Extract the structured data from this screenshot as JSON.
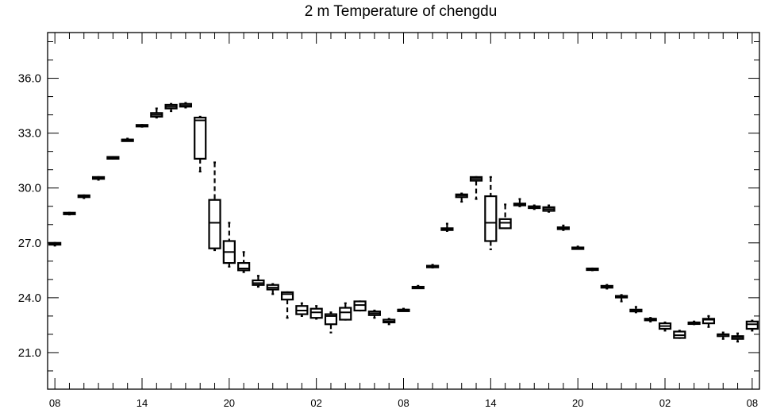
{
  "chart_data": {
    "type": "box",
    "title": "2 m Temperature of chengdu",
    "xlabel": "",
    "ylabel": "",
    "ylim": [
      19.0,
      38.5
    ],
    "xlim": [
      -0.5,
      48.5
    ],
    "y_ticks": [
      21.0,
      24.0,
      27.0,
      30.0,
      33.0,
      36.0
    ],
    "y_tick_labels": [
      "21.0",
      "24.0",
      "27.0",
      "30.0",
      "33.0",
      "36.0"
    ],
    "x_ticks": [
      0,
      6,
      12,
      18,
      24,
      30,
      36,
      42,
      48
    ],
    "x_tick_labels": [
      "08",
      "14",
      "20",
      "02",
      "08",
      "14",
      "20",
      "02",
      "08"
    ],
    "grid": false,
    "series": [
      {
        "values": [
          {
            "x": 0,
            "min": 26.85,
            "q1": 26.9,
            "median": 26.95,
            "q3": 27.0,
            "max": 27.0
          },
          {
            "x": 1,
            "min": 28.55,
            "q1": 28.6,
            "median": 28.6,
            "q3": 28.65,
            "max": 28.65
          },
          {
            "x": 2,
            "min": 29.45,
            "q1": 29.5,
            "median": 29.55,
            "q3": 29.6,
            "max": 29.6
          },
          {
            "x": 3,
            "min": 30.45,
            "q1": 30.5,
            "median": 30.55,
            "q3": 30.6,
            "max": 30.6
          },
          {
            "x": 4,
            "min": 31.6,
            "q1": 31.6,
            "median": 31.65,
            "q3": 31.7,
            "max": 31.7
          },
          {
            "x": 5,
            "min": 32.6,
            "q1": 32.6,
            "median": 32.65,
            "q3": 32.65,
            "max": 32.7
          },
          {
            "x": 6,
            "min": 33.35,
            "q1": 33.4,
            "median": 33.4,
            "q3": 33.45,
            "max": 33.45
          },
          {
            "x": 7,
            "min": 33.85,
            "q1": 33.9,
            "median": 34.0,
            "q3": 34.1,
            "max": 34.35
          },
          {
            "x": 8,
            "min": 34.2,
            "q1": 34.35,
            "median": 34.45,
            "q3": 34.55,
            "max": 34.6
          },
          {
            "x": 9,
            "min": 34.4,
            "q1": 34.45,
            "median": 34.5,
            "q3": 34.6,
            "max": 34.65
          },
          {
            "x": 10,
            "min": 30.9,
            "q1": 31.6,
            "median": 33.7,
            "q3": 33.85,
            "max": 33.9
          },
          {
            "x": 11,
            "min": 26.6,
            "q1": 26.7,
            "median": 28.1,
            "q3": 29.35,
            "max": 31.4
          },
          {
            "x": 12,
            "min": 25.7,
            "q1": 25.9,
            "median": 26.5,
            "q3": 27.1,
            "max": 28.1
          },
          {
            "x": 13,
            "min": 25.4,
            "q1": 25.5,
            "median": 25.6,
            "q3": 25.9,
            "max": 26.5
          },
          {
            "x": 14,
            "min": 24.6,
            "q1": 24.7,
            "median": 24.8,
            "q3": 24.95,
            "max": 25.2
          },
          {
            "x": 15,
            "min": 24.2,
            "q1": 24.45,
            "median": 24.55,
            "q3": 24.7,
            "max": 24.75
          },
          {
            "x": 16,
            "min": 22.9,
            "q1": 23.9,
            "median": 24.2,
            "q3": 24.3,
            "max": 24.3
          },
          {
            "x": 17,
            "min": 23.0,
            "q1": 23.1,
            "median": 23.3,
            "q3": 23.55,
            "max": 23.7
          },
          {
            "x": 18,
            "min": 22.85,
            "q1": 22.9,
            "median": 23.2,
            "q3": 23.4,
            "max": 23.55
          },
          {
            "x": 19,
            "min": 22.1,
            "q1": 22.55,
            "median": 23.0,
            "q3": 23.1,
            "max": 23.2
          },
          {
            "x": 20,
            "min": 22.8,
            "q1": 22.8,
            "median": 23.2,
            "q3": 23.45,
            "max": 23.7
          },
          {
            "x": 21,
            "min": 23.3,
            "q1": 23.3,
            "median": 23.6,
            "q3": 23.8,
            "max": 23.8
          },
          {
            "x": 22,
            "min": 22.9,
            "q1": 23.05,
            "median": 23.15,
            "q3": 23.25,
            "max": 23.3
          },
          {
            "x": 23,
            "min": 22.55,
            "q1": 22.65,
            "median": 22.7,
            "q3": 22.8,
            "max": 22.85
          },
          {
            "x": 24,
            "min": 23.3,
            "q1": 23.3,
            "median": 23.35,
            "q3": 23.35,
            "max": 23.4
          },
          {
            "x": 25,
            "min": 24.55,
            "q1": 24.6,
            "median": 24.6,
            "q3": 24.6,
            "max": 24.65
          },
          {
            "x": 26,
            "min": 25.65,
            "q1": 25.7,
            "median": 25.75,
            "q3": 25.75,
            "max": 25.8
          },
          {
            "x": 27,
            "min": 27.65,
            "q1": 27.7,
            "median": 27.75,
            "q3": 27.8,
            "max": 28.05
          },
          {
            "x": 28,
            "min": 29.25,
            "q1": 29.5,
            "median": 29.6,
            "q3": 29.65,
            "max": 29.7
          },
          {
            "x": 29,
            "min": 29.4,
            "q1": 30.4,
            "median": 30.5,
            "q3": 30.6,
            "max": 30.6
          },
          {
            "x": 30,
            "min": 26.65,
            "q1": 27.1,
            "median": 28.1,
            "q3": 29.55,
            "max": 30.6
          },
          {
            "x": 31,
            "min": 27.8,
            "q1": 27.8,
            "median": 28.1,
            "q3": 28.3,
            "max": 29.1
          },
          {
            "x": 32,
            "min": 29.0,
            "q1": 29.05,
            "median": 29.1,
            "q3": 29.15,
            "max": 29.4
          },
          {
            "x": 33,
            "min": 28.85,
            "q1": 28.9,
            "median": 28.95,
            "q3": 29.0,
            "max": 29.05
          },
          {
            "x": 34,
            "min": 28.7,
            "q1": 28.75,
            "median": 28.85,
            "q3": 28.95,
            "max": 29.05
          },
          {
            "x": 35,
            "min": 27.7,
            "q1": 27.75,
            "median": 27.8,
            "q3": 27.85,
            "max": 27.95
          },
          {
            "x": 36,
            "min": 26.7,
            "q1": 26.7,
            "median": 26.75,
            "q3": 26.75,
            "max": 26.8
          },
          {
            "x": 37,
            "min": 25.5,
            "q1": 25.55,
            "median": 25.55,
            "q3": 25.6,
            "max": 25.6
          },
          {
            "x": 38,
            "min": 24.5,
            "q1": 24.55,
            "median": 24.6,
            "q3": 24.65,
            "max": 24.7
          },
          {
            "x": 39,
            "min": 23.8,
            "q1": 24.05,
            "median": 24.1,
            "q3": 24.1,
            "max": 24.15
          },
          {
            "x": 40,
            "min": 23.2,
            "q1": 23.25,
            "median": 23.3,
            "q3": 23.35,
            "max": 23.5
          },
          {
            "x": 41,
            "min": 22.7,
            "q1": 22.8,
            "median": 22.85,
            "q3": 22.85,
            "max": 22.9
          },
          {
            "x": 42,
            "min": 22.2,
            "q1": 22.3,
            "median": 22.45,
            "q3": 22.6,
            "max": 22.65
          },
          {
            "x": 43,
            "min": 21.8,
            "q1": 21.8,
            "median": 21.95,
            "q3": 22.15,
            "max": 22.2
          },
          {
            "x": 44,
            "min": 22.55,
            "q1": 22.6,
            "median": 22.65,
            "q3": 22.65,
            "max": 22.7
          },
          {
            "x": 45,
            "min": 22.4,
            "q1": 22.6,
            "median": 22.8,
            "q3": 22.85,
            "max": 23.0
          },
          {
            "x": 46,
            "min": 21.75,
            "q1": 21.9,
            "median": 22.0,
            "q3": 22.0,
            "max": 22.1
          },
          {
            "x": 47,
            "min": 21.6,
            "q1": 21.75,
            "median": 21.85,
            "q3": 21.9,
            "max": 22.05
          },
          {
            "x": 48,
            "min": 22.2,
            "q1": 22.3,
            "median": 22.55,
            "q3": 22.7,
            "max": 22.75
          }
        ]
      }
    ]
  }
}
